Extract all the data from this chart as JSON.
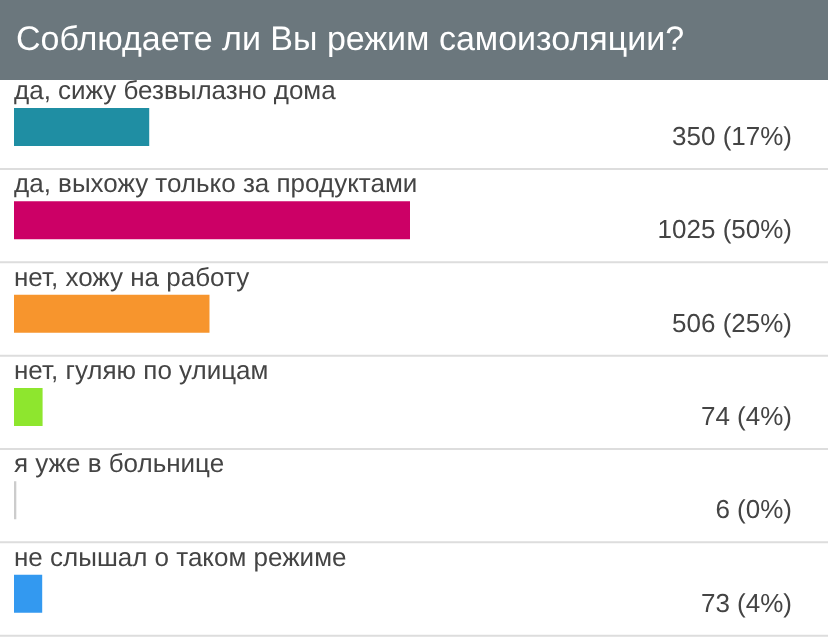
{
  "chart_data": {
    "type": "bar",
    "orientation": "horizontal",
    "title": "Соблюдаете ли Вы режим самоизоляции?",
    "categories": [
      "да, сижу безвылазно дома",
      "да, выхожу только за продуктами",
      "нет, хожу на работу",
      "нет, гуляю по улицам",
      "я уже в больнице",
      "не слышал о таком режиме"
    ],
    "values": [
      350,
      1025,
      506,
      74,
      6,
      73
    ],
    "colors": [
      "#1f8ea3",
      "#cc0066",
      "#f7952d",
      "#8ee62e",
      "#cccccc",
      "#3399f0"
    ],
    "value_labels": [
      "350 (17%)",
      "1025 (50%)",
      "506 (25%)",
      "74 (4%)",
      "6 (0%)",
      "73 (4%)"
    ]
  }
}
